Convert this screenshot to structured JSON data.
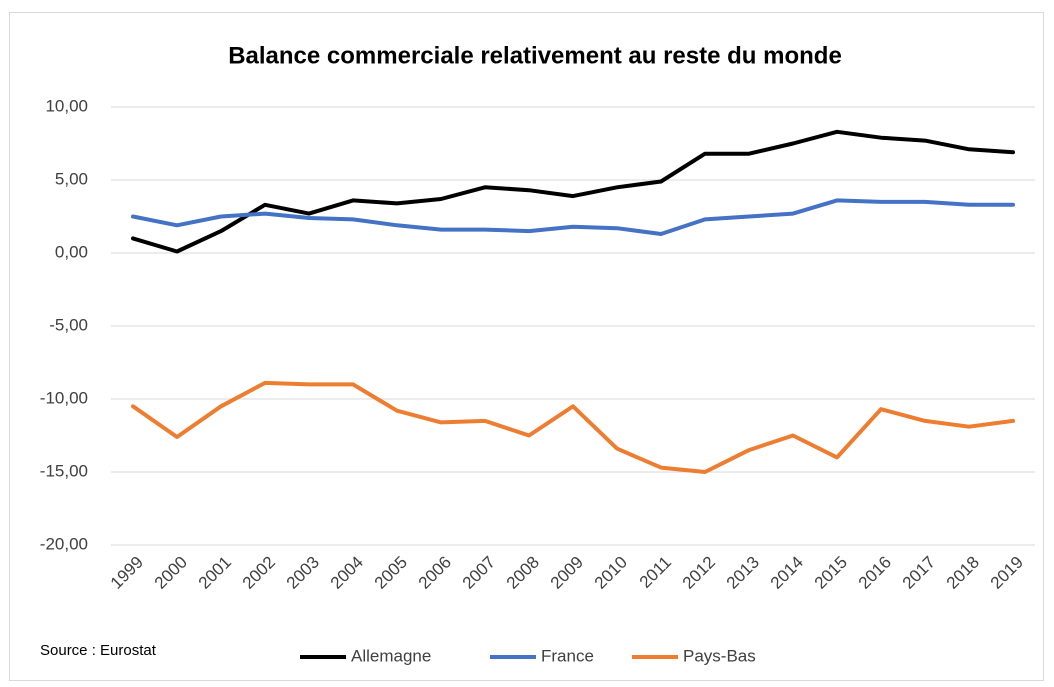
{
  "chart_data": {
    "type": "line",
    "title": "Balance commerciale relativement au reste du monde",
    "annotation": "Source : Eurostat",
    "categories": [
      "1999",
      "2000",
      "2001",
      "2002",
      "2003",
      "2004",
      "2005",
      "2006",
      "2007",
      "2008",
      "2009",
      "2010",
      "2011",
      "2012",
      "2013",
      "2014",
      "2015",
      "2016",
      "2017",
      "2018",
      "2019"
    ],
    "series": [
      {
        "name": "Allemagne",
        "color": "#000000",
        "values": [
          1.0,
          0.1,
          1.5,
          3.3,
          2.7,
          3.6,
          3.4,
          3.7,
          4.5,
          4.3,
          3.9,
          4.5,
          4.9,
          6.8,
          6.8,
          7.5,
          8.3,
          7.9,
          7.7,
          7.1,
          6.9
        ]
      },
      {
        "name": "France",
        "color": "#4472c4",
        "values": [
          2.5,
          1.9,
          2.5,
          2.7,
          2.4,
          2.3,
          1.9,
          1.6,
          1.6,
          1.5,
          1.8,
          1.7,
          1.3,
          2.3,
          2.5,
          2.7,
          3.6,
          3.5,
          3.5,
          3.3,
          3.3
        ]
      },
      {
        "name": "Pays-Bas",
        "color": "#ed7d31",
        "values": [
          -10.5,
          -12.6,
          -10.5,
          -8.9,
          -9.0,
          -9.0,
          -10.8,
          -11.6,
          -11.5,
          -12.5,
          -10.5,
          -13.4,
          -14.7,
          -15.0,
          -13.5,
          -12.5,
          -14.0,
          -10.7,
          -11.5,
          -11.9,
          -11.5
        ]
      }
    ],
    "ylim": [
      -20,
      10
    ],
    "yticks": [
      {
        "value": -20,
        "label": "-20,00"
      },
      {
        "value": -15,
        "label": "-15,00"
      },
      {
        "value": -10,
        "label": "-10,00"
      },
      {
        "value": -5,
        "label": "-5,00"
      },
      {
        "value": 0,
        "label": "0,00"
      },
      {
        "value": 5,
        "label": "5,00"
      },
      {
        "value": 10,
        "label": "10,00"
      }
    ],
    "grid": true,
    "legend": "bottom"
  }
}
